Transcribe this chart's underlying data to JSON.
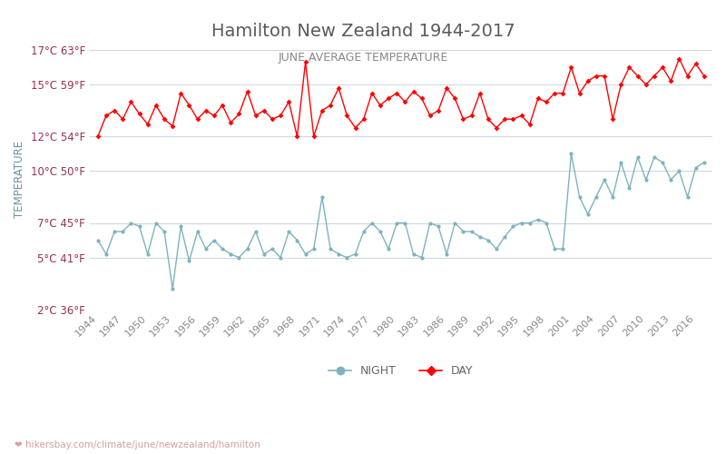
{
  "title": "Hamilton New Zealand 1944-2017",
  "subtitle": "JUNE AVERAGE TEMPERATURE",
  "ylabel": "TEMPERATURE",
  "xlabel_url": "hikersbay.com/climate/june/newzealand/hamilton",
  "ylim": [
    2,
    17
  ],
  "yticks_c": [
    2,
    5,
    7,
    10,
    12,
    15,
    17
  ],
  "yticks_f": [
    36,
    41,
    45,
    50,
    54,
    59,
    63
  ],
  "years": [
    1944,
    1945,
    1946,
    1947,
    1948,
    1949,
    1950,
    1951,
    1952,
    1953,
    1954,
    1955,
    1956,
    1957,
    1958,
    1959,
    1960,
    1961,
    1962,
    1963,
    1964,
    1965,
    1966,
    1967,
    1968,
    1969,
    1970,
    1971,
    1972,
    1973,
    1974,
    1975,
    1976,
    1977,
    1978,
    1979,
    1980,
    1981,
    1982,
    1983,
    1984,
    1985,
    1986,
    1987,
    1988,
    1989,
    1990,
    1991,
    1992,
    1993,
    1994,
    1995,
    1996,
    1997,
    1998,
    1999,
    2000,
    2001,
    2002,
    2003,
    2004,
    2005,
    2006,
    2007,
    2008,
    2009,
    2010,
    2011,
    2012,
    2013,
    2014,
    2015,
    2016,
    2017
  ],
  "day_temps": [
    12.0,
    13.2,
    13.5,
    13.0,
    14.0,
    13.3,
    12.7,
    13.8,
    13.0,
    12.6,
    14.5,
    13.8,
    13.0,
    13.5,
    13.2,
    13.8,
    12.8,
    13.3,
    14.6,
    13.2,
    13.5,
    13.0,
    13.2,
    14.0,
    12.0,
    16.3,
    12.0,
    13.5,
    13.8,
    14.8,
    13.2,
    12.5,
    13.0,
    14.5,
    13.8,
    14.2,
    14.5,
    14.0,
    14.6,
    14.2,
    13.2,
    13.5,
    14.8,
    14.2,
    13.0,
    13.2,
    14.5,
    13.0,
    12.5,
    13.0,
    13.0,
    13.2,
    12.7,
    14.2,
    14.0,
    14.5,
    14.5,
    16.0,
    14.5,
    15.2,
    15.5,
    15.5,
    13.0,
    15.0,
    16.0,
    15.5,
    15.0,
    15.5,
    16.0,
    15.2,
    16.5,
    15.5,
    16.2,
    15.5
  ],
  "night_temps": [
    6.0,
    5.2,
    6.5,
    6.5,
    7.0,
    6.8,
    5.2,
    7.0,
    6.5,
    3.2,
    6.8,
    4.8,
    6.5,
    5.5,
    6.0,
    5.5,
    5.2,
    5.0,
    5.5,
    6.5,
    5.2,
    5.5,
    5.0,
    6.5,
    6.0,
    5.2,
    5.5,
    8.5,
    5.5,
    5.2,
    5.0,
    5.2,
    6.5,
    7.0,
    6.5,
    5.5,
    7.0,
    7.0,
    5.2,
    5.0,
    7.0,
    6.8,
    5.2,
    7.0,
    6.5,
    6.5,
    6.2,
    6.0,
    5.5,
    6.2,
    6.8,
    7.0,
    7.0,
    7.2,
    7.0,
    5.5,
    5.5,
    11.0,
    8.5,
    7.5,
    8.5,
    9.5,
    8.5,
    10.5,
    9.0,
    10.8,
    9.5,
    10.8,
    10.5,
    9.5,
    10.0,
    8.5,
    10.2,
    10.5
  ],
  "day_color": "#ff0000",
  "night_color": "#7db3be",
  "day_marker": "D",
  "night_marker": "o",
  "marker_size": 3,
  "bg_color": "#ffffff",
  "grid_color": "#d0d8e0",
  "title_color": "#5a5a5a",
  "subtitle_color": "#888888",
  "ylabel_color": "#7090a0",
  "tick_color": "#9a3050",
  "xtick_color": "#888888",
  "url_color": "#d0a0a0",
  "legend_night_label": "NIGHT",
  "legend_day_label": "DAY"
}
